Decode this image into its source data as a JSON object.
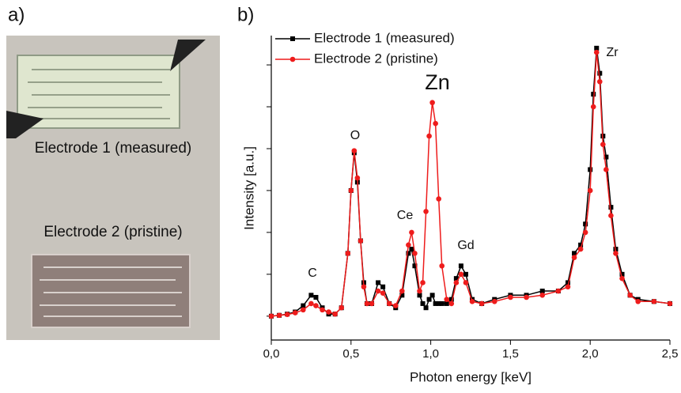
{
  "panel_labels": [
    "a)",
    "b)"
  ],
  "photo": {
    "labels": [
      "Electrode 1 (measured)",
      "Electrode 2 (pristine)"
    ]
  },
  "chart_data": {
    "type": "line",
    "x_label": "Photon energy [keV]",
    "y_label": "Intensity [a.u.]",
    "xlim": [
      0,
      2.5
    ],
    "xticks": [
      {
        "value": 0,
        "label": "0,0"
      },
      {
        "value": 0.5,
        "label": "0,5"
      },
      {
        "value": 1,
        "label": "1,0"
      },
      {
        "value": 1.5,
        "label": "1,5"
      },
      {
        "value": 2,
        "label": "2,0"
      },
      {
        "value": 2.5,
        "label": "2,5"
      }
    ],
    "ylim": [
      -0.57,
      6.7
    ],
    "yticks": [
      0,
      1,
      2,
      3,
      4,
      5,
      6
    ],
    "legend": "upper left",
    "annotations": [
      "C",
      "O",
      "Ce",
      "Zn",
      "Gd",
      "Zr"
    ],
    "x": [
      0.0,
      0.05,
      0.1,
      0.15,
      0.2,
      0.25,
      0.28,
      0.32,
      0.36,
      0.4,
      0.44,
      0.48,
      0.5,
      0.52,
      0.54,
      0.56,
      0.58,
      0.6,
      0.63,
      0.67,
      0.7,
      0.74,
      0.78,
      0.82,
      0.86,
      0.88,
      0.9,
      0.93,
      0.95,
      0.97,
      0.99,
      1.01,
      1.03,
      1.05,
      1.07,
      1.1,
      1.13,
      1.16,
      1.19,
      1.22,
      1.26,
      1.32,
      1.4,
      1.5,
      1.6,
      1.7,
      1.8,
      1.86,
      1.9,
      1.94,
      1.97,
      2.0,
      2.02,
      2.04,
      2.06,
      2.08,
      2.1,
      2.13,
      2.16,
      2.2,
      2.25,
      2.3,
      2.4,
      2.5
    ],
    "series": [
      {
        "name": "Electrode 1 (measured)",
        "color": "#000000",
        "marker": "square",
        "values": [
          0.0,
          0.02,
          0.05,
          0.1,
          0.25,
          0.5,
          0.45,
          0.2,
          0.05,
          0.05,
          0.2,
          1.5,
          3.0,
          3.9,
          3.2,
          1.8,
          0.8,
          0.3,
          0.3,
          0.8,
          0.7,
          0.3,
          0.2,
          0.5,
          1.5,
          1.6,
          1.2,
          0.5,
          0.3,
          0.2,
          0.4,
          0.5,
          0.3,
          0.3,
          0.3,
          0.3,
          0.4,
          0.9,
          1.2,
          1.0,
          0.4,
          0.3,
          0.4,
          0.5,
          0.5,
          0.6,
          0.6,
          0.8,
          1.5,
          1.7,
          2.2,
          3.5,
          5.3,
          6.4,
          5.8,
          4.3,
          3.8,
          2.6,
          1.6,
          1.0,
          0.5,
          0.4,
          0.35,
          0.3
        ]
      },
      {
        "name": "Electrode 2 (pristine)",
        "color": "#ee1c1c",
        "marker": "circle",
        "values": [
          0.0,
          0.02,
          0.04,
          0.08,
          0.15,
          0.3,
          0.25,
          0.15,
          0.1,
          0.05,
          0.2,
          1.5,
          3.0,
          3.95,
          3.3,
          1.8,
          0.7,
          0.3,
          0.3,
          0.6,
          0.55,
          0.3,
          0.25,
          0.6,
          1.7,
          2.0,
          1.5,
          0.6,
          0.8,
          2.5,
          4.3,
          5.1,
          4.6,
          2.8,
          1.2,
          0.4,
          0.3,
          0.8,
          1.0,
          0.8,
          0.35,
          0.3,
          0.35,
          0.45,
          0.45,
          0.5,
          0.6,
          0.7,
          1.4,
          1.6,
          2.0,
          3.0,
          5.0,
          6.3,
          5.6,
          4.1,
          3.5,
          2.4,
          1.5,
          0.9,
          0.5,
          0.35,
          0.35,
          0.3
        ]
      }
    ]
  }
}
